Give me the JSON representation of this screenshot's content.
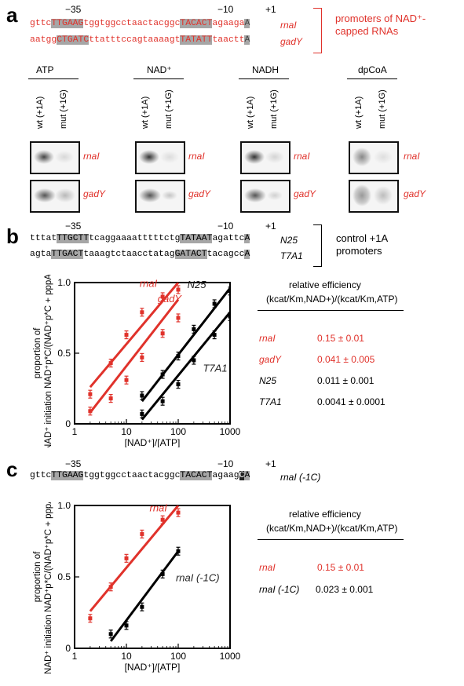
{
  "panels": {
    "a": "a",
    "b": "b",
    "c": "c"
  },
  "a": {
    "pos_m35": "−35",
    "pos_m10": "−10",
    "pos_p1": "+1",
    "seq1": [
      "gttc",
      "TTGAAG",
      "tggtggcctaactacggc",
      "TACACT",
      "agaaga",
      "A"
    ],
    "seq1_label": "rnaI",
    "seq2": [
      "aatgg",
      "CTGATC",
      "ttatttccagtaaaagt",
      "TATATT",
      "taactt",
      "A"
    ],
    "seq2_label": "gadY",
    "bracket_label": "promoters of NAD⁺-capped RNAs",
    "groups": [
      "ATP",
      "NAD⁺",
      "NADH",
      "dpCoA"
    ],
    "lanes": [
      "wt (+1A)",
      "mut (+1G)"
    ],
    "blot_row_labels": [
      "rnaI",
      "gadY"
    ]
  },
  "b": {
    "pos_m35": "−35",
    "pos_m10": "−10",
    "pos_p1": "+1",
    "seq1": [
      "tttat",
      "TTGCTT",
      "tcaggaaaatttttctg",
      "TATAAT",
      "agattc",
      "A"
    ],
    "seq1_label": "N25",
    "seq2": [
      "agta",
      "TTGACT",
      "taaagtctaacctatag",
      "GATACT",
      "tacagcc",
      "A"
    ],
    "seq2_label": "T7A1",
    "bracket_label": "control +1A promoters",
    "chart_data": {
      "type": "scatter",
      "xscale": "log",
      "xlim": [
        1,
        1000
      ],
      "ylim": [
        0,
        1
      ],
      "xlabel": "[NAD⁺]/[ATP]",
      "ylabel": "proportion of NAD⁺ initiation NAD⁺p*C/(NAD⁺p*C + pppAp*C)",
      "xticks": [
        "1",
        "10",
        "100",
        "1000"
      ],
      "yticks": [
        "0",
        "0.5",
        "1.0"
      ],
      "series": [
        {
          "name": "rnaI",
          "color": "#e0322b",
          "x": [
            2,
            5,
            10,
            20,
            50,
            100
          ],
          "y": [
            0.21,
            0.43,
            0.63,
            0.79,
            0.9,
            0.95
          ],
          "fit": [
            [
              2,
              0.26
            ],
            [
              100,
              1.0
            ]
          ]
        },
        {
          "name": "gadY",
          "color": "#e0322b",
          "x": [
            2,
            5,
            10,
            20,
            50,
            100
          ],
          "y": [
            0.09,
            0.18,
            0.31,
            0.47,
            0.64,
            0.75
          ],
          "fit": [
            [
              2,
              0.08
            ],
            [
              100,
              0.88
            ]
          ]
        },
        {
          "name": "N25",
          "color": "#000000",
          "x": [
            20,
            50,
            100,
            200,
            500,
            1000
          ],
          "y": [
            0.2,
            0.35,
            0.48,
            0.67,
            0.85,
            0.94
          ],
          "fit": [
            [
              20,
              0.16
            ],
            [
              1000,
              0.96
            ]
          ]
        },
        {
          "name": "T7A1",
          "color": "#000000",
          "x": [
            20,
            50,
            100,
            200,
            500,
            1000
          ],
          "y": [
            0.07,
            0.16,
            0.28,
            0.45,
            0.63,
            0.76
          ],
          "fit": [
            [
              20,
              0.03
            ],
            [
              1000,
              0.79
            ]
          ]
        }
      ]
    },
    "table": {
      "header1": "relative efficiency",
      "header2": "(kcat/Km,NAD+)/(kcat/Km,ATP)",
      "rows": [
        {
          "name": "rnaI",
          "value": "0.15",
          "err": "± 0.01"
        },
        {
          "name": "gadY",
          "value": "0.041",
          "err": "± 0.005"
        },
        {
          "name": "N25",
          "value": "0.011",
          "err": "± 0.001"
        },
        {
          "name": "T7A1",
          "value": "0.0041",
          "err": "± 0.0001"
        }
      ]
    }
  },
  "c": {
    "pos_m35": "−35",
    "pos_m10": "−10",
    "pos_p1": "+1",
    "seq": [
      "gttc",
      "TTGAAG",
      "tggtggcctaactacggc",
      "TACACT",
      "agaag",
      "C",
      "A"
    ],
    "seq_label": "rnaI (-1C)",
    "chart_data": {
      "type": "scatter",
      "xscale": "log",
      "xlim": [
        1,
        1000
      ],
      "ylim": [
        0,
        1
      ],
      "xlabel": "[NAD⁺]/[ATP]",
      "ylabel": "proportion of NAD⁺ initiation NAD⁺p*C/(NAD⁺p*C + pppAp*C)",
      "xticks": [
        "1",
        "10",
        "100",
        "1000"
      ],
      "yticks": [
        "0",
        "0.5",
        "1.0"
      ],
      "series": [
        {
          "name": "rnaI",
          "color": "#e0322b",
          "x": [
            2,
            5,
            10,
            20,
            50,
            100
          ],
          "y": [
            0.21,
            0.43,
            0.63,
            0.8,
            0.9,
            0.95
          ],
          "fit": [
            [
              2,
              0.26
            ],
            [
              100,
              1.0
            ]
          ]
        },
        {
          "name": "rnaI (-1C)",
          "color": "#000000",
          "x": [
            5,
            10,
            20,
            50,
            100
          ],
          "y": [
            0.1,
            0.16,
            0.29,
            0.52,
            0.68
          ],
          "fit": [
            [
              5,
              0.05
            ],
            [
              100,
              0.68
            ]
          ]
        }
      ]
    },
    "table": {
      "header1": "relative efficiency",
      "header2": "(kcat/Km,NAD+)/(kcat/Km,ATP)",
      "rows": [
        {
          "name": "rnaI",
          "value": "0.15",
          "err": "± 0.01"
        },
        {
          "name": "rnaI (-1C)",
          "value": "0.023",
          "err": "± 0.001"
        }
      ]
    }
  }
}
